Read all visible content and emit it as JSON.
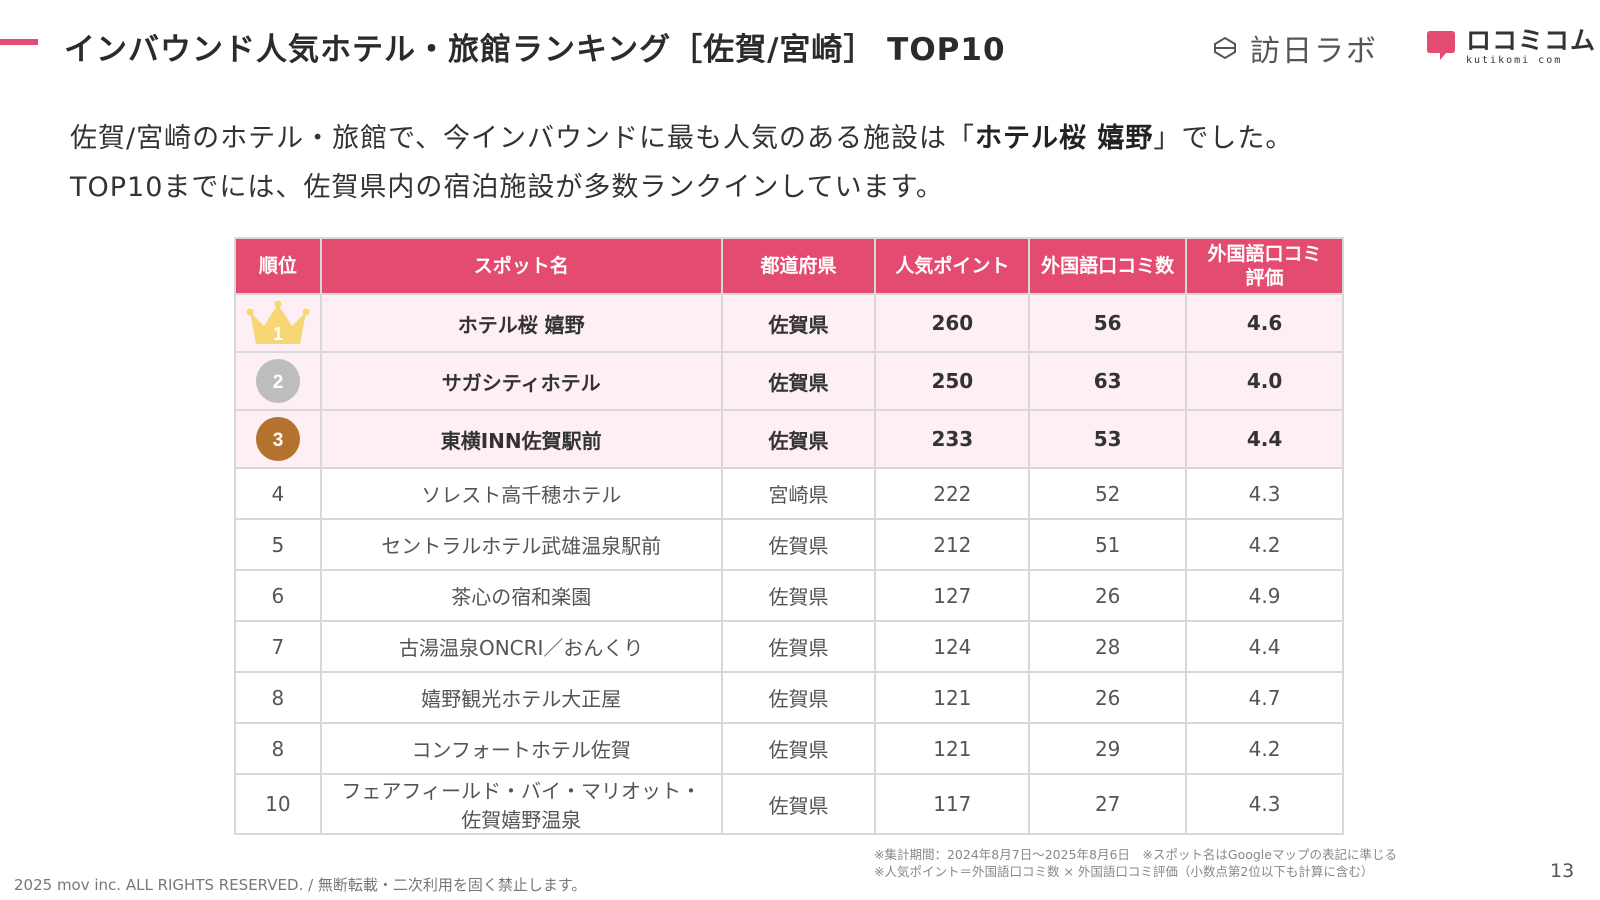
{
  "header": {
    "title": "インバウンド人気ホテル・旅館ランキング［佐賀/宮崎］ TOP10",
    "logo_houjin": "訪日ラボ",
    "logo_kuchikomi": "ロコミコム",
    "logo_kuchikomi_en": "kutikomi com"
  },
  "intro": {
    "line1_pre": "佐賀/宮崎のホテル・旅館で、今インバウンドに最も人気のある施設は「",
    "line1_bold": "ホテル桜 嬉野",
    "line1_post": "」でした。",
    "line2": "TOP10までには、佐賀県内の宿泊施設が多数ランクインしています。"
  },
  "table": {
    "headers": {
      "rank": "順位",
      "spot": "スポット名",
      "pref": "都道府県",
      "points": "人気ポイント",
      "reviews": "外国語口コミ数",
      "rating_line1": "外国語口コミ",
      "rating_line2": "評価"
    },
    "rows": [
      {
        "rank": "1",
        "name": "ホテル桜 嬉野",
        "pref": "佐賀県",
        "points": "260",
        "reviews": "56",
        "rating": "4.6"
      },
      {
        "rank": "2",
        "name": "サガシティホテル",
        "pref": "佐賀県",
        "points": "250",
        "reviews": "63",
        "rating": "4.0"
      },
      {
        "rank": "3",
        "name": "東横INN佐賀駅前",
        "pref": "佐賀県",
        "points": "233",
        "reviews": "53",
        "rating": "4.4"
      },
      {
        "rank": "4",
        "name": "ソレスト高千穂ホテル",
        "pref": "宮崎県",
        "points": "222",
        "reviews": "52",
        "rating": "4.3"
      },
      {
        "rank": "5",
        "name": "セントラルホテル武雄温泉駅前",
        "pref": "佐賀県",
        "points": "212",
        "reviews": "51",
        "rating": "4.2"
      },
      {
        "rank": "6",
        "name": "茶心の宿和楽園",
        "pref": "佐賀県",
        "points": "127",
        "reviews": "26",
        "rating": "4.9"
      },
      {
        "rank": "7",
        "name": "古湯温泉ONCRI／おんくり",
        "pref": "佐賀県",
        "points": "124",
        "reviews": "28",
        "rating": "4.4"
      },
      {
        "rank": "8",
        "name": "嬉野観光ホテル大正屋",
        "pref": "佐賀県",
        "points": "121",
        "reviews": "26",
        "rating": "4.7"
      },
      {
        "rank": "8",
        "name": "コンフォートホテル佐賀",
        "pref": "佐賀県",
        "points": "121",
        "reviews": "29",
        "rating": "4.2"
      },
      {
        "rank": "10",
        "name_line1": "フェアフィールド・バイ・マリオット・",
        "name_line2": "佐賀嬉野温泉",
        "pref": "佐賀県",
        "points": "117",
        "reviews": "27",
        "rating": "4.3"
      }
    ]
  },
  "colors": {
    "accent": "#e44b70",
    "highlight_row": "#fdeff4",
    "gold": "#f7d774",
    "silver": "#bdbdbd",
    "bronze": "#b5722e"
  },
  "footer": {
    "note1": "※集計期間：2024年8月7日〜2025年8月6日　※スポット名はGoogleマップの表記に準じる",
    "note2": "※人気ポイント＝外国語口コミ数 × 外国語口コミ評価（小数点第2位以下も計算に含む）",
    "copyright": "2025 mov inc. ALL RIGHTS RESERVED. / 無断転載・二次利用を固く禁止します。",
    "page": "13"
  }
}
